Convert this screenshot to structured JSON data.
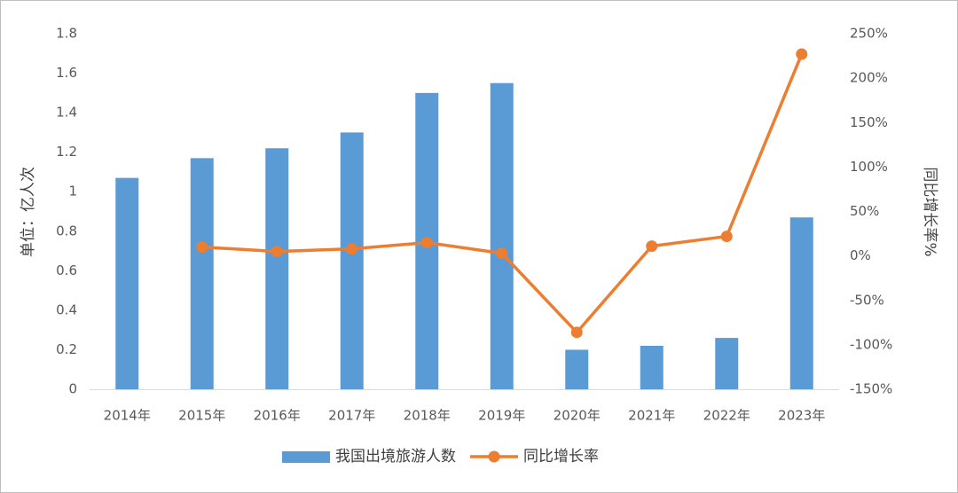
{
  "chart_data": {
    "type": "bar",
    "categories": [
      "2014年",
      "2015年",
      "2016年",
      "2017年",
      "2018年",
      "2019年",
      "2020年",
      "2021年",
      "2022年",
      "2023年"
    ],
    "series": [
      {
        "name": "我国出境旅游人数",
        "type": "bar",
        "color": "#5b9bd5",
        "values": [
          1.07,
          1.17,
          1.22,
          1.3,
          1.5,
          1.55,
          0.2,
          0.22,
          0.26,
          0.87
        ]
      },
      {
        "name": "同比增长率",
        "type": "line",
        "axis": "y2",
        "color": "#ed7d31",
        "values": [
          null,
          10,
          5,
          8,
          15,
          3,
          -86,
          11,
          22,
          227
        ]
      }
    ],
    "ylabel": "单位：亿人次",
    "y2label": "同比增长率%",
    "ylim": [
      0,
      1.8
    ],
    "yticks": [
      0,
      0.2,
      0.4,
      0.6,
      0.8,
      1,
      1.2,
      1.4,
      1.6,
      1.8
    ],
    "y2lim": [
      -150,
      250
    ],
    "y2ticks": [
      {
        "value": -150,
        "label": "-150%"
      },
      {
        "value": -100,
        "label": "-100%"
      },
      {
        "value": -50,
        "label": "-50%"
      },
      {
        "value": 0,
        "label": "0%"
      },
      {
        "value": 50,
        "label": "50%"
      },
      {
        "value": 100,
        "label": "100%"
      },
      {
        "value": 150,
        "label": "150%"
      },
      {
        "value": 200,
        "label": "200%"
      },
      {
        "value": 250,
        "label": "250%"
      }
    ],
    "grid": false,
    "legend": "bottom"
  }
}
